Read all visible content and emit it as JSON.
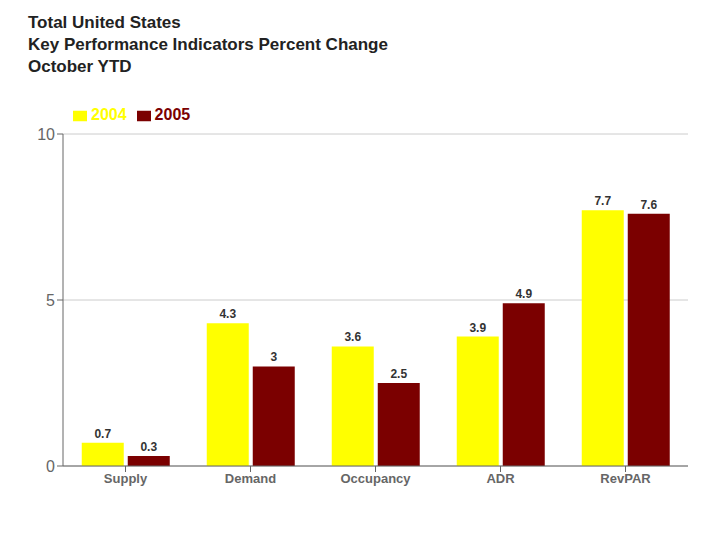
{
  "chart_data": {
    "type": "bar",
    "title": "Total United States\nKey Performance Indicators Percent Change\nOctober YTD",
    "categories": [
      "Supply",
      "Demand",
      "Occupancy",
      "ADR",
      "RevPAR"
    ],
    "series": [
      {
        "name": "2004",
        "color": "#FFFF00",
        "values": [
          0.7,
          4.3,
          3.6,
          3.9,
          7.7
        ]
      },
      {
        "name": "2005",
        "color": "#7B0000",
        "values": [
          0.3,
          3.0,
          2.5,
          4.9,
          7.6
        ]
      }
    ],
    "ylim": [
      0,
      10
    ],
    "yticks": [
      0,
      5,
      10
    ],
    "grid": true,
    "legend": "upper left",
    "data_labels": true
  }
}
